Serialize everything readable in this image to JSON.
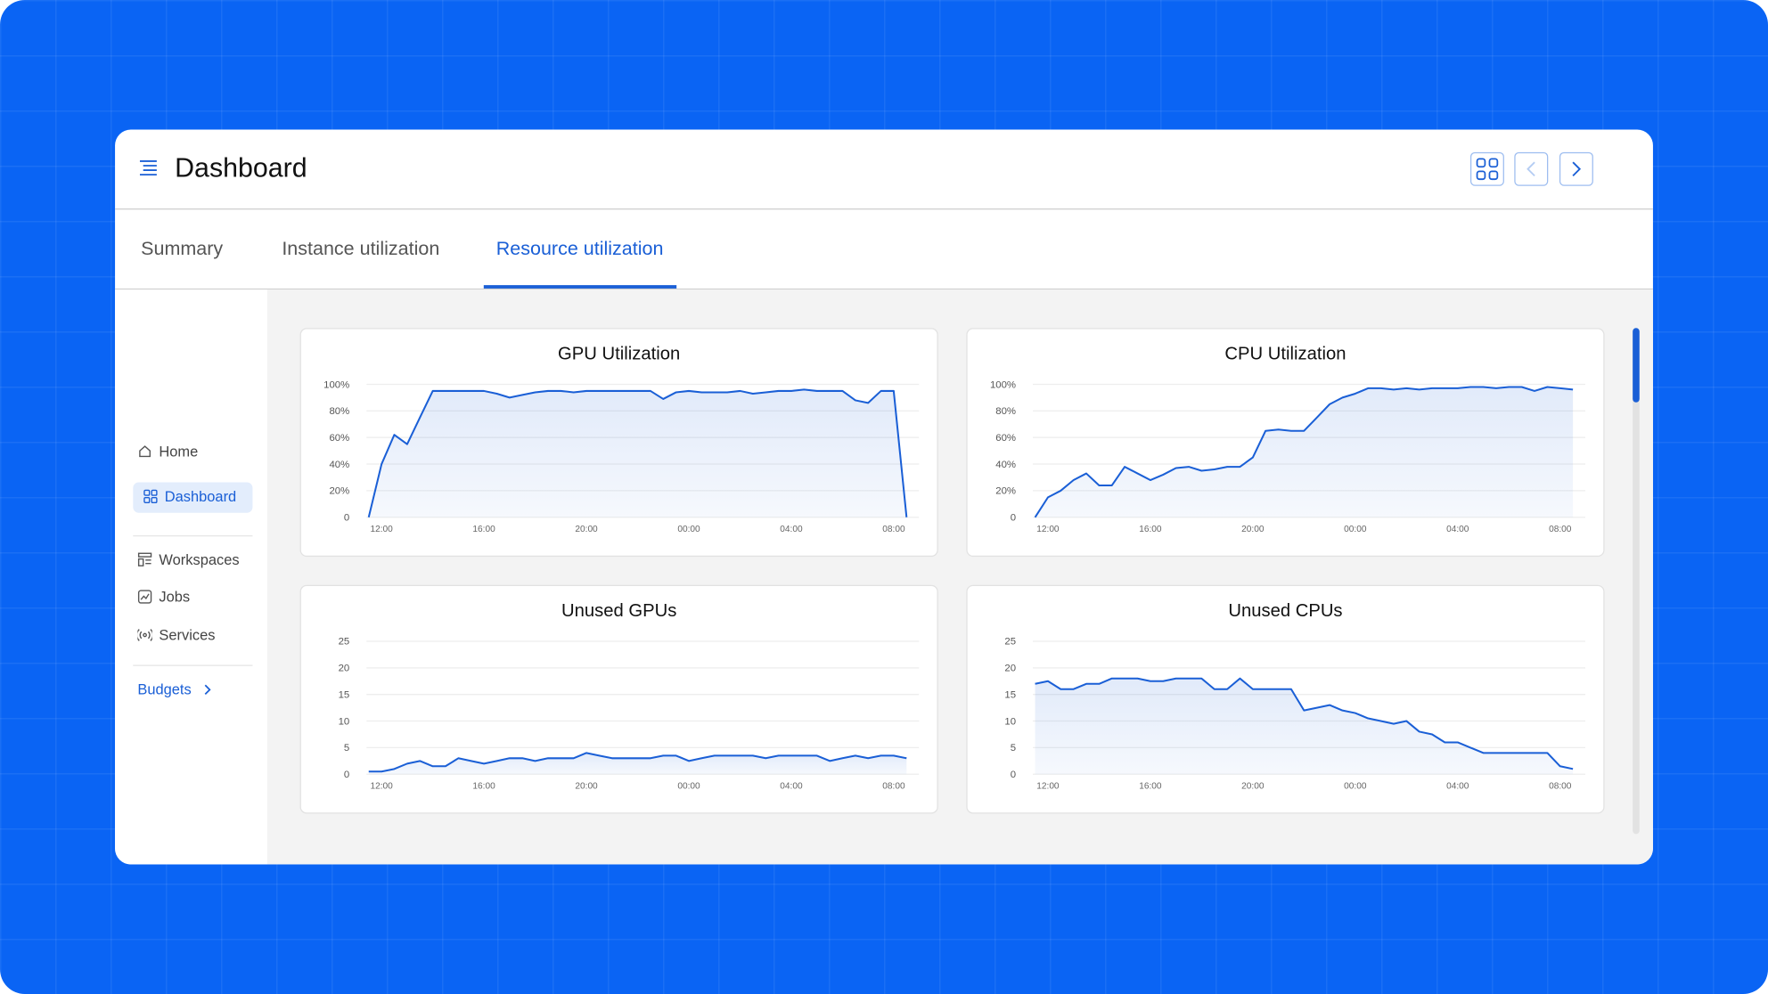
{
  "header": {
    "title": "Dashboard"
  },
  "tabs": [
    "Summary",
    "Instance utilization",
    "Resource utilization"
  ],
  "sidebar": {
    "items": [
      "Home",
      "Dashboard",
      "Workspaces",
      "Jobs",
      "Services"
    ],
    "link": "Budgets"
  },
  "chart_data": [
    {
      "type": "line",
      "title": "GPU Utilization",
      "color": "#1a5fd6",
      "grid": true,
      "categories": [
        null,
        "12:00",
        null,
        null,
        null,
        null,
        null,
        null,
        null,
        "16:00",
        null,
        null,
        null,
        null,
        null,
        null,
        null,
        "20:00",
        null,
        null,
        null,
        null,
        null,
        null,
        null,
        "00:00",
        null,
        null,
        null,
        null,
        null,
        null,
        null,
        "04:00",
        null,
        null,
        null,
        null,
        null,
        null,
        null,
        "08:00",
        null
      ],
      "values": [
        0,
        40,
        62,
        55,
        75,
        95,
        95,
        95,
        95,
        95,
        93,
        90,
        92,
        94,
        95,
        95,
        94,
        95,
        95,
        95,
        95,
        95,
        95,
        89,
        94,
        95,
        94,
        94,
        94,
        95,
        93,
        94,
        95,
        95,
        96,
        95,
        95,
        95,
        88,
        86,
        95,
        95,
        0
      ],
      "ylim": [
        0,
        100
      ],
      "yticks": [
        0,
        {
          "value": 20,
          "label": "20%"
        },
        {
          "value": 40,
          "label": "40%"
        },
        {
          "value": 60,
          "label": "60%"
        },
        {
          "value": 80,
          "label": "80%"
        },
        {
          "value": 100,
          "label": "100%"
        }
      ]
    },
    {
      "type": "line",
      "title": "CPU Utilization",
      "color": "#1a5fd6",
      "grid": true,
      "categories": [
        null,
        "12:00",
        null,
        null,
        null,
        null,
        null,
        null,
        null,
        "16:00",
        null,
        null,
        null,
        null,
        null,
        null,
        null,
        "20:00",
        null,
        null,
        null,
        null,
        null,
        null,
        null,
        "00:00",
        null,
        null,
        null,
        null,
        null,
        null,
        null,
        "04:00",
        null,
        null,
        null,
        null,
        null,
        null,
        null,
        "08:00",
        null
      ],
      "values": [
        0,
        15,
        20,
        28,
        33,
        24,
        24,
        38,
        33,
        28,
        32,
        37,
        38,
        35,
        36,
        38,
        38,
        45,
        65,
        66,
        65,
        65,
        75,
        85,
        90,
        93,
        97,
        97,
        96,
        97,
        96,
        97,
        97,
        97,
        98,
        98,
        97,
        98,
        98,
        95,
        98,
        97,
        96
      ],
      "ylim": [
        0,
        100
      ],
      "yticks": [
        0,
        {
          "value": 20,
          "label": "20%"
        },
        {
          "value": 40,
          "label": "40%"
        },
        {
          "value": 60,
          "label": "60%"
        },
        {
          "value": 80,
          "label": "80%"
        },
        {
          "value": 100,
          "label": "100%"
        }
      ]
    },
    {
      "type": "line",
      "title": "Unused GPUs",
      "color": "#1a5fd6",
      "grid": true,
      "categories": [
        null,
        "12:00",
        null,
        null,
        null,
        null,
        null,
        null,
        null,
        "16:00",
        null,
        null,
        null,
        null,
        null,
        null,
        null,
        "20:00",
        null,
        null,
        null,
        null,
        null,
        null,
        null,
        "00:00",
        null,
        null,
        null,
        null,
        null,
        null,
        null,
        "04:00",
        null,
        null,
        null,
        null,
        null,
        null,
        null,
        "08:00",
        null
      ],
      "values": [
        0.5,
        0.5,
        1,
        2,
        2.5,
        1.5,
        1.5,
        3,
        2.5,
        2,
        2.5,
        3,
        3,
        2.5,
        3,
        3,
        3,
        4,
        3.5,
        3,
        3,
        3,
        3,
        3.5,
        3.5,
        2.5,
        3,
        3.5,
        3.5,
        3.5,
        3.5,
        3,
        3.5,
        3.5,
        3.5,
        3.5,
        2.5,
        3,
        3.5,
        3,
        3.5,
        3.5,
        3
      ],
      "ylim": [
        0,
        25
      ],
      "yticks": [
        0,
        5,
        10,
        15,
        20,
        25
      ]
    },
    {
      "type": "line",
      "title": "Unused CPUs",
      "color": "#1a5fd6",
      "grid": true,
      "categories": [
        null,
        "12:00",
        null,
        null,
        null,
        null,
        null,
        null,
        null,
        "16:00",
        null,
        null,
        null,
        null,
        null,
        null,
        null,
        "20:00",
        null,
        null,
        null,
        null,
        null,
        null,
        null,
        "00:00",
        null,
        null,
        null,
        null,
        null,
        null,
        null,
        "04:00",
        null,
        null,
        null,
        null,
        null,
        null,
        null,
        "08:00",
        null
      ],
      "values": [
        17,
        17.5,
        16,
        16,
        17,
        17,
        18,
        18,
        18,
        17.5,
        17.5,
        18,
        18,
        18,
        16,
        16,
        18,
        16,
        16,
        16,
        16,
        12,
        12.5,
        13,
        12,
        11.5,
        10.5,
        10,
        9.5,
        10,
        8,
        7.5,
        6,
        6,
        5,
        4,
        4,
        4,
        4,
        4,
        4,
        1.5,
        1
      ],
      "ylim": [
        0,
        25
      ],
      "yticks": [
        0,
        5,
        10,
        15,
        20,
        25
      ]
    }
  ]
}
